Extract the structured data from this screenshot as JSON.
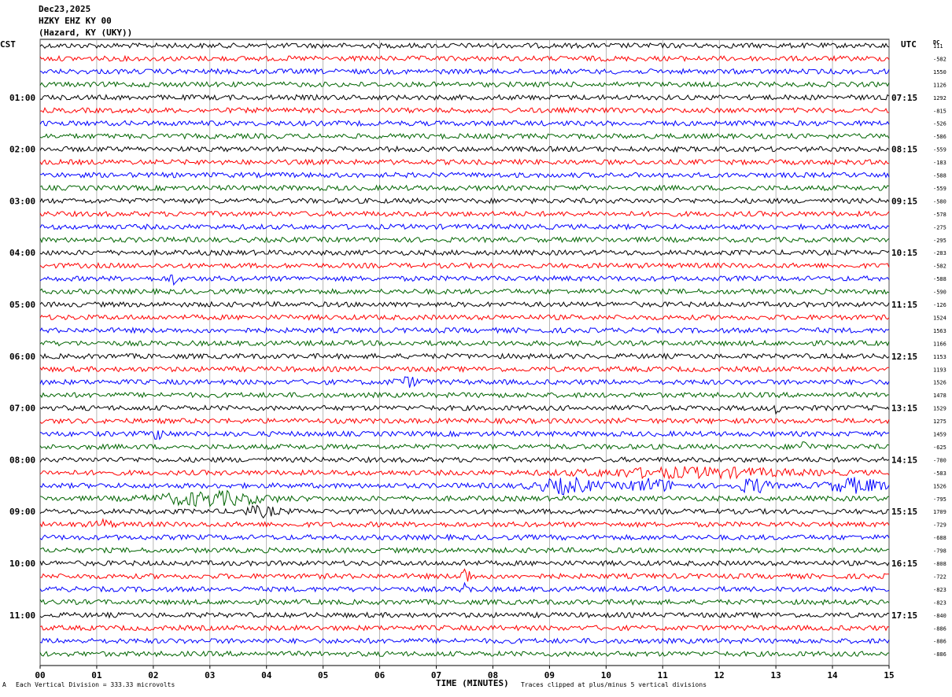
{
  "header": {
    "date": "Dec23,2025",
    "station": "HZKY EHZ KY 00",
    "location": "(Hazard, KY (UKY))"
  },
  "left_axis_title": "CST",
  "right_axis_title": "UTC",
  "dc_title": "DC",
  "footer": {
    "scale": "Each Vertical Division =  333.33 microvolts",
    "clip": "Traces clipped at plus/minus 5 vertical divisions",
    "corner_mark": "A"
  },
  "chart_data": {
    "type": "line",
    "title": "",
    "xlabel": "TIME (MINUTES)",
    "ylabel": "",
    "xlim": [
      0,
      15
    ],
    "x_ticks": [
      "00",
      "01",
      "02",
      "03",
      "04",
      "05",
      "06",
      "07",
      "08",
      "09",
      "10",
      "11",
      "12",
      "13",
      "14",
      "15"
    ],
    "grid": true,
    "trace_colors": [
      "#000000",
      "#ff0000",
      "#0000ff",
      "#006400"
    ],
    "trace_count": 48,
    "left_labels": [
      {
        "trace": 4,
        "text": "01:00"
      },
      {
        "trace": 8,
        "text": "02:00"
      },
      {
        "trace": 12,
        "text": "03:00"
      },
      {
        "trace": 16,
        "text": "04:00"
      },
      {
        "trace": 20,
        "text": "05:00"
      },
      {
        "trace": 24,
        "text": "06:00"
      },
      {
        "trace": 28,
        "text": "07:00"
      },
      {
        "trace": 32,
        "text": "08:00"
      },
      {
        "trace": 36,
        "text": "09:00"
      },
      {
        "trace": 40,
        "text": "10:00"
      },
      {
        "trace": 44,
        "text": "11:00"
      }
    ],
    "right_labels": [
      {
        "trace": 4,
        "text": "07:15"
      },
      {
        "trace": 8,
        "text": "08:15"
      },
      {
        "trace": 12,
        "text": "09:15"
      },
      {
        "trace": 16,
        "text": "10:15"
      },
      {
        "trace": 20,
        "text": "11:15"
      },
      {
        "trace": 24,
        "text": "12:15"
      },
      {
        "trace": 28,
        "text": "13:15"
      },
      {
        "trace": 32,
        "text": "14:15"
      },
      {
        "trace": 36,
        "text": "15:15"
      },
      {
        "trace": 40,
        "text": "16:15"
      },
      {
        "trace": 44,
        "text": "17:15"
      }
    ],
    "dc_values": [
      "111",
      "-582",
      "1550",
      "1126",
      "1292",
      "-815",
      "-526",
      "-586",
      "-559",
      "-183",
      "-588",
      "-559",
      "-580",
      "-578",
      "-275",
      "-295",
      "-283",
      "-582",
      "-588",
      "-590",
      "-126",
      "1524",
      "1563",
      "1166",
      "1153",
      "1193",
      "1526",
      "1478",
      "1529",
      "1275",
      "1459",
      "-625",
      "-780",
      "-583",
      "1526",
      "-795",
      "1709",
      "-729",
      "-688",
      "-798",
      "-808",
      "-722",
      "-823",
      "-823",
      "-840",
      "-886",
      "-886",
      "-886"
    ],
    "events": [
      {
        "trace": 18,
        "x": 2.35,
        "amp": 2.0,
        "width": 0.08
      },
      {
        "trace": 26,
        "x": 6.5,
        "amp": 1.4,
        "width": 0.25
      },
      {
        "trace": 30,
        "x": 2.1,
        "amp": 1.6,
        "width": 0.15
      },
      {
        "trace": 28,
        "x": 13.0,
        "amp": 1.7,
        "width": 0.08
      },
      {
        "trace": 31,
        "x": 13.5,
        "amp": 1.8,
        "width": 0.12
      },
      {
        "trace": 33,
        "x": 11.5,
        "amp": 1.5,
        "width": 1.8
      },
      {
        "trace": 34,
        "x": 9.3,
        "amp": 2.6,
        "width": 0.5
      },
      {
        "trace": 34,
        "x": 10.8,
        "amp": 2.2,
        "width": 0.4
      },
      {
        "trace": 34,
        "x": 12.6,
        "amp": 2.6,
        "width": 0.25
      },
      {
        "trace": 34,
        "x": 14.4,
        "amp": 2.4,
        "width": 0.5
      },
      {
        "trace": 35,
        "x": 3.0,
        "amp": 2.4,
        "width": 0.9
      },
      {
        "trace": 36,
        "x": 3.9,
        "amp": 1.6,
        "width": 0.3
      },
      {
        "trace": 37,
        "x": 1.1,
        "amp": 1.5,
        "width": 0.15
      },
      {
        "trace": 41,
        "x": 7.52,
        "amp": 6.0,
        "width": 0.06
      },
      {
        "trace": 42,
        "x": 7.52,
        "amp": 3.5,
        "width": 0.06
      },
      {
        "trace": 40,
        "x": 7.52,
        "amp": 1.8,
        "width": 0.04
      }
    ]
  }
}
